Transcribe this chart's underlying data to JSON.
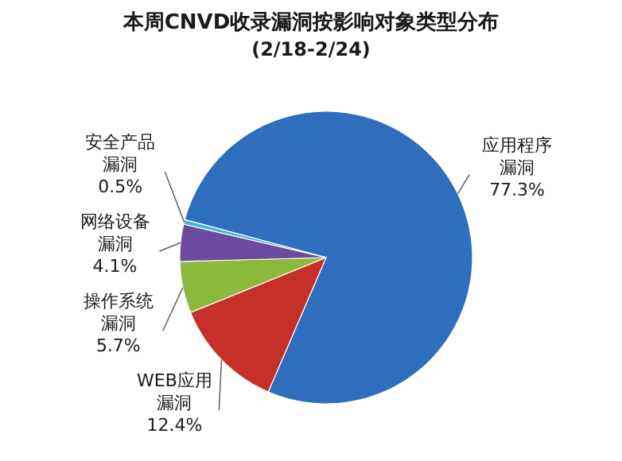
{
  "chart_data": {
    "type": "pie",
    "title": "本周CNVD收录漏洞按影响对象类型分布",
    "subtitle": "(2/18-2/24)",
    "categories": [
      "应用程序漏洞",
      "WEB应用漏洞",
      "操作系统漏洞",
      "网络设备漏洞",
      "安全产品漏洞"
    ],
    "values": [
      77.3,
      12.4,
      5.7,
      4.1,
      0.5
    ],
    "colors": [
      "#2f6ebd",
      "#c6302b",
      "#8cb83c",
      "#6b4b9e",
      "#45b3d3"
    ],
    "value_labels": [
      "77.3%",
      "12.4%",
      "5.7%",
      "4.1%",
      "0.5%"
    ]
  }
}
